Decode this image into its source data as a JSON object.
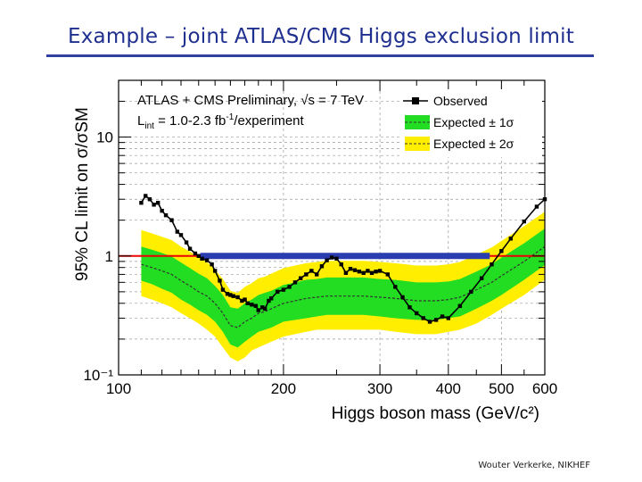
{
  "slide": {
    "title": "Example – joint ATLAS/CMS Higgs exclusion limit",
    "footer": "Wouter Verkerke, NIKHEF"
  },
  "colors": {
    "title": "#1f2f8f",
    "band_2sigma": "#ffee00",
    "band_1sigma": "#22dd22",
    "observed": "#000000",
    "expected": "#333333",
    "sm_line": "#ee0000",
    "excluded_bar": "#2a3db0"
  },
  "chart_data": {
    "type": "line",
    "title": "ATLAS + CMS Preliminary, √s = 7 TeV",
    "subtitle_prefix": "L",
    "subtitle_sub": "int",
    "subtitle_mid": " = 1.0-2.3 fb",
    "subtitle_sup": "-1",
    "subtitle_suffix": "/experiment",
    "xlabel": "Higgs boson mass (GeV/c²)",
    "ylabel": "95% CL limit on σ/σSM",
    "xscale": "log",
    "yscale": "log",
    "xlim": [
      100,
      600
    ],
    "ylim": [
      0.1,
      30
    ],
    "x_ticks": [
      100,
      200,
      300,
      400,
      500,
      600
    ],
    "x_tick_labels": [
      "100",
      "200",
      "300",
      "400",
      "500",
      "600"
    ],
    "y_ticks": [
      0.1,
      1,
      10
    ],
    "y_tick_labels": [
      "10⁻¹",
      "1",
      "10"
    ],
    "legend": {
      "position": "top-right",
      "entries": [
        "Observed",
        "Expected ± 1σ",
        "Expected ± 2σ"
      ]
    },
    "reference_line": {
      "y": 1
    },
    "excluded_range": {
      "x": [
        141,
        476
      ],
      "y": 1
    },
    "expected": {
      "x": [
        110,
        115,
        120,
        125,
        130,
        135,
        140,
        145,
        150,
        155,
        160,
        165,
        170,
        175,
        180,
        185,
        190,
        200,
        210,
        220,
        230,
        240,
        250,
        260,
        280,
        300,
        320,
        350,
        380,
        400,
        420,
        450,
        480,
        500,
        550,
        600
      ],
      "y": [
        0.85,
        0.8,
        0.75,
        0.7,
        0.62,
        0.56,
        0.5,
        0.46,
        0.4,
        0.33,
        0.26,
        0.25,
        0.28,
        0.3,
        0.33,
        0.34,
        0.36,
        0.4,
        0.42,
        0.44,
        0.45,
        0.46,
        0.46,
        0.46,
        0.46,
        0.45,
        0.44,
        0.42,
        0.42,
        0.43,
        0.45,
        0.52,
        0.6,
        0.68,
        0.9,
        1.2
      ]
    },
    "sigma1_low": [
      0.62,
      0.58,
      0.53,
      0.49,
      0.43,
      0.39,
      0.35,
      0.32,
      0.28,
      0.23,
      0.18,
      0.17,
      0.19,
      0.21,
      0.23,
      0.24,
      0.25,
      0.28,
      0.29,
      0.3,
      0.31,
      0.32,
      0.32,
      0.32,
      0.32,
      0.31,
      0.3,
      0.29,
      0.29,
      0.3,
      0.31,
      0.36,
      0.42,
      0.47,
      0.63,
      0.84
    ],
    "sigma1_high": [
      1.2,
      1.13,
      1.06,
      0.99,
      0.88,
      0.79,
      0.71,
      0.65,
      0.56,
      0.47,
      0.37,
      0.36,
      0.4,
      0.43,
      0.47,
      0.49,
      0.51,
      0.57,
      0.6,
      0.63,
      0.64,
      0.66,
      0.66,
      0.66,
      0.66,
      0.64,
      0.63,
      0.6,
      0.6,
      0.61,
      0.64,
      0.74,
      0.85,
      0.97,
      1.28,
      1.7
    ],
    "sigma2_low": [
      0.46,
      0.43,
      0.4,
      0.37,
      0.33,
      0.3,
      0.27,
      0.24,
      0.21,
      0.17,
      0.14,
      0.13,
      0.14,
      0.16,
      0.17,
      0.18,
      0.19,
      0.21,
      0.22,
      0.23,
      0.24,
      0.24,
      0.24,
      0.24,
      0.24,
      0.24,
      0.23,
      0.22,
      0.22,
      0.23,
      0.24,
      0.27,
      0.32,
      0.36,
      0.47,
      0.63
    ],
    "sigma2_high": [
      1.65,
      1.55,
      1.45,
      1.36,
      1.2,
      1.09,
      0.97,
      0.89,
      0.77,
      0.64,
      0.51,
      0.49,
      0.55,
      0.59,
      0.65,
      0.67,
      0.71,
      0.79,
      0.83,
      0.87,
      0.89,
      0.91,
      0.91,
      0.91,
      0.91,
      0.89,
      0.87,
      0.83,
      0.83,
      0.85,
      0.89,
      1.03,
      1.18,
      1.34,
      1.78,
      2.36
    ],
    "observed": {
      "x": [
        110,
        112,
        114,
        116,
        118,
        120,
        122,
        125,
        128,
        130,
        133,
        135,
        138,
        140,
        142,
        145,
        148,
        150,
        153,
        155,
        158,
        160,
        162,
        165,
        168,
        170,
        172,
        175,
        178,
        180,
        183,
        185,
        188,
        190,
        195,
        200,
        205,
        210,
        215,
        220,
        225,
        230,
        235,
        240,
        245,
        250,
        255,
        260,
        265,
        270,
        275,
        280,
        285,
        290,
        295,
        300,
        310,
        320,
        330,
        340,
        350,
        360,
        370,
        380,
        390,
        400,
        420,
        440,
        460,
        480,
        500,
        520,
        550,
        580,
        600
      ],
      "y": [
        2.8,
        3.2,
        3.0,
        2.7,
        2.8,
        2.4,
        2.2,
        2.0,
        1.6,
        1.5,
        1.3,
        1.15,
        1.05,
        1.0,
        0.95,
        0.92,
        0.85,
        0.75,
        0.62,
        0.52,
        0.48,
        0.47,
        0.46,
        0.45,
        0.42,
        0.43,
        0.4,
        0.39,
        0.38,
        0.35,
        0.37,
        0.36,
        0.42,
        0.44,
        0.5,
        0.52,
        0.55,
        0.6,
        0.65,
        0.7,
        0.75,
        0.7,
        0.82,
        0.92,
        0.97,
        0.95,
        0.85,
        0.72,
        0.78,
        0.76,
        0.74,
        0.72,
        0.75,
        0.72,
        0.74,
        0.75,
        0.7,
        0.55,
        0.45,
        0.37,
        0.33,
        0.3,
        0.28,
        0.29,
        0.31,
        0.3,
        0.38,
        0.5,
        0.65,
        0.85,
        1.1,
        1.4,
        1.95,
        2.6,
        3.0
      ]
    }
  }
}
